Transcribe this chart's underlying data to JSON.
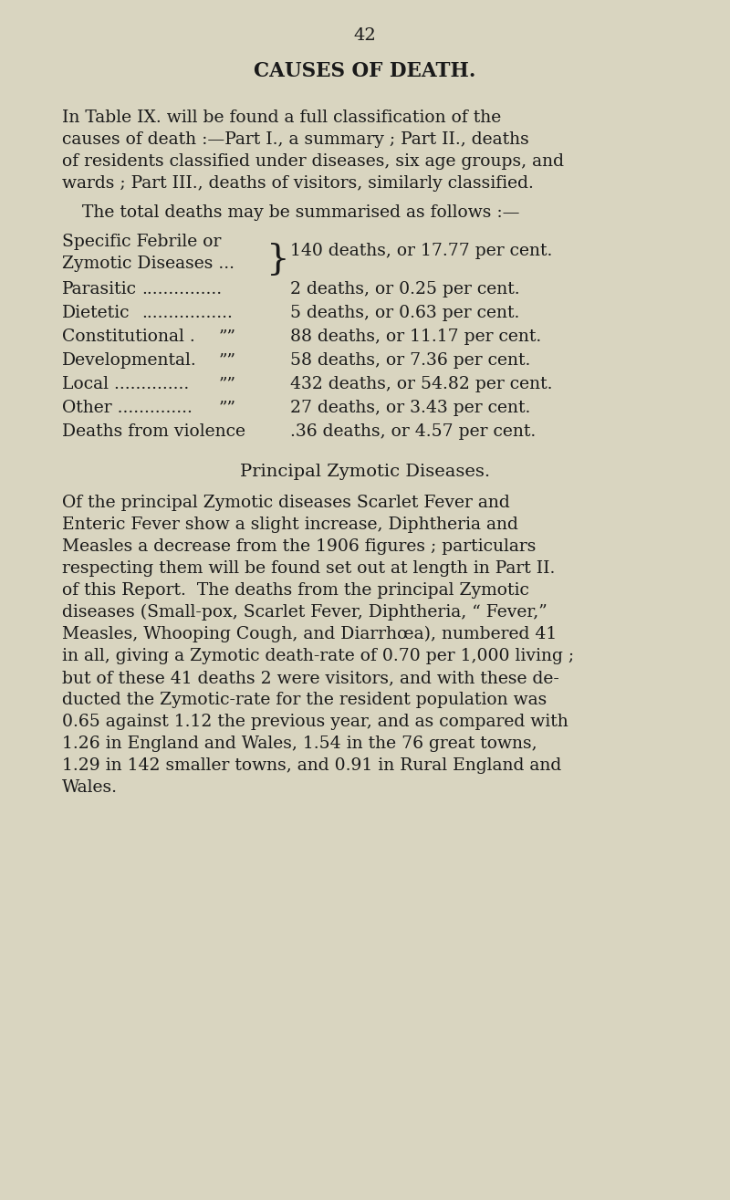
{
  "bg_color": "#d9d5c0",
  "text_color": "#1a1a1a",
  "page_number": "42",
  "title": "CAUSES OF DEATH.",
  "para1_lines": [
    "In Table IX. will be found a full classification of the",
    "causes of death :—Part I., a summary ; Part II., deaths",
    "of residents classified under diseases, six age groups, and",
    "wards ; Part III., deaths of visitors, similarly classified."
  ],
  "intro_line": "The total deaths may be summarised as follows :—",
  "brace_line1": "Specific Febrile or",
  "brace_line2": "Zymotic Diseases ...",
  "brace_value": "140 deaths, or 17.77 per cent.",
  "rows": [
    {
      "label": "Parasitic",
      "dots": "...............",
      "comma": "",
      "value": "2 deaths, or 0.25 per cent."
    },
    {
      "label": "Dietetic",
      "dots": ".................",
      "comma": "",
      "value": "5 deaths, or 0.63 per cent."
    },
    {
      "label": "Constitutional .",
      "dots": "",
      "comma": "””",
      "value": "88 deaths, or 11.17 per cent."
    },
    {
      "label": "Developmental.",
      "dots": "",
      "comma": "””",
      "value": "58 deaths, or 7.36 per cent."
    },
    {
      "label": "Local ..............",
      "dots": "",
      "comma": "””",
      "value": "432 deaths, or 54.82 per cent."
    },
    {
      "label": "Other ..............",
      "dots": "",
      "comma": "””",
      "value": "27 deaths, or 3.43 per cent."
    },
    {
      "label": "Deaths from violence",
      "dots": "",
      "comma": "",
      "value": ".36 deaths, or 4.57 per cent."
    }
  ],
  "section2_title": "Principal Zymotic Diseases.",
  "para2_lines": [
    "Of the principal Zymotic diseases Scarlet Fever and",
    "Enteric Fever show a slight increase, Diphtheria and",
    "Measles a decrease from the 1906 figures ; particulars",
    "respecting them will be found set out at length in Part II.",
    "of this Report.  The deaths from the principal Zymotic",
    "diseases (Small-pox, Scarlet Fever, Diphtheria, “ Fever,”",
    "Measles, Whooping Cough, and Diarrhœa), numbered 41",
    "in all, giving a Zymotic death-rate of 0.70 per 1,000 living ;",
    "but of these 41 deaths 2 were visitors, and with these de-",
    "ducted the Zymotic-rate for the resident population was",
    "0.65 against 1.12 the previous year, and as compared with",
    "1.26 in England and Wales, 1.54 in the 76 great towns,",
    "1.29 in 142 smaller towns, and 0.91 in Rural England and",
    "Wales."
  ]
}
